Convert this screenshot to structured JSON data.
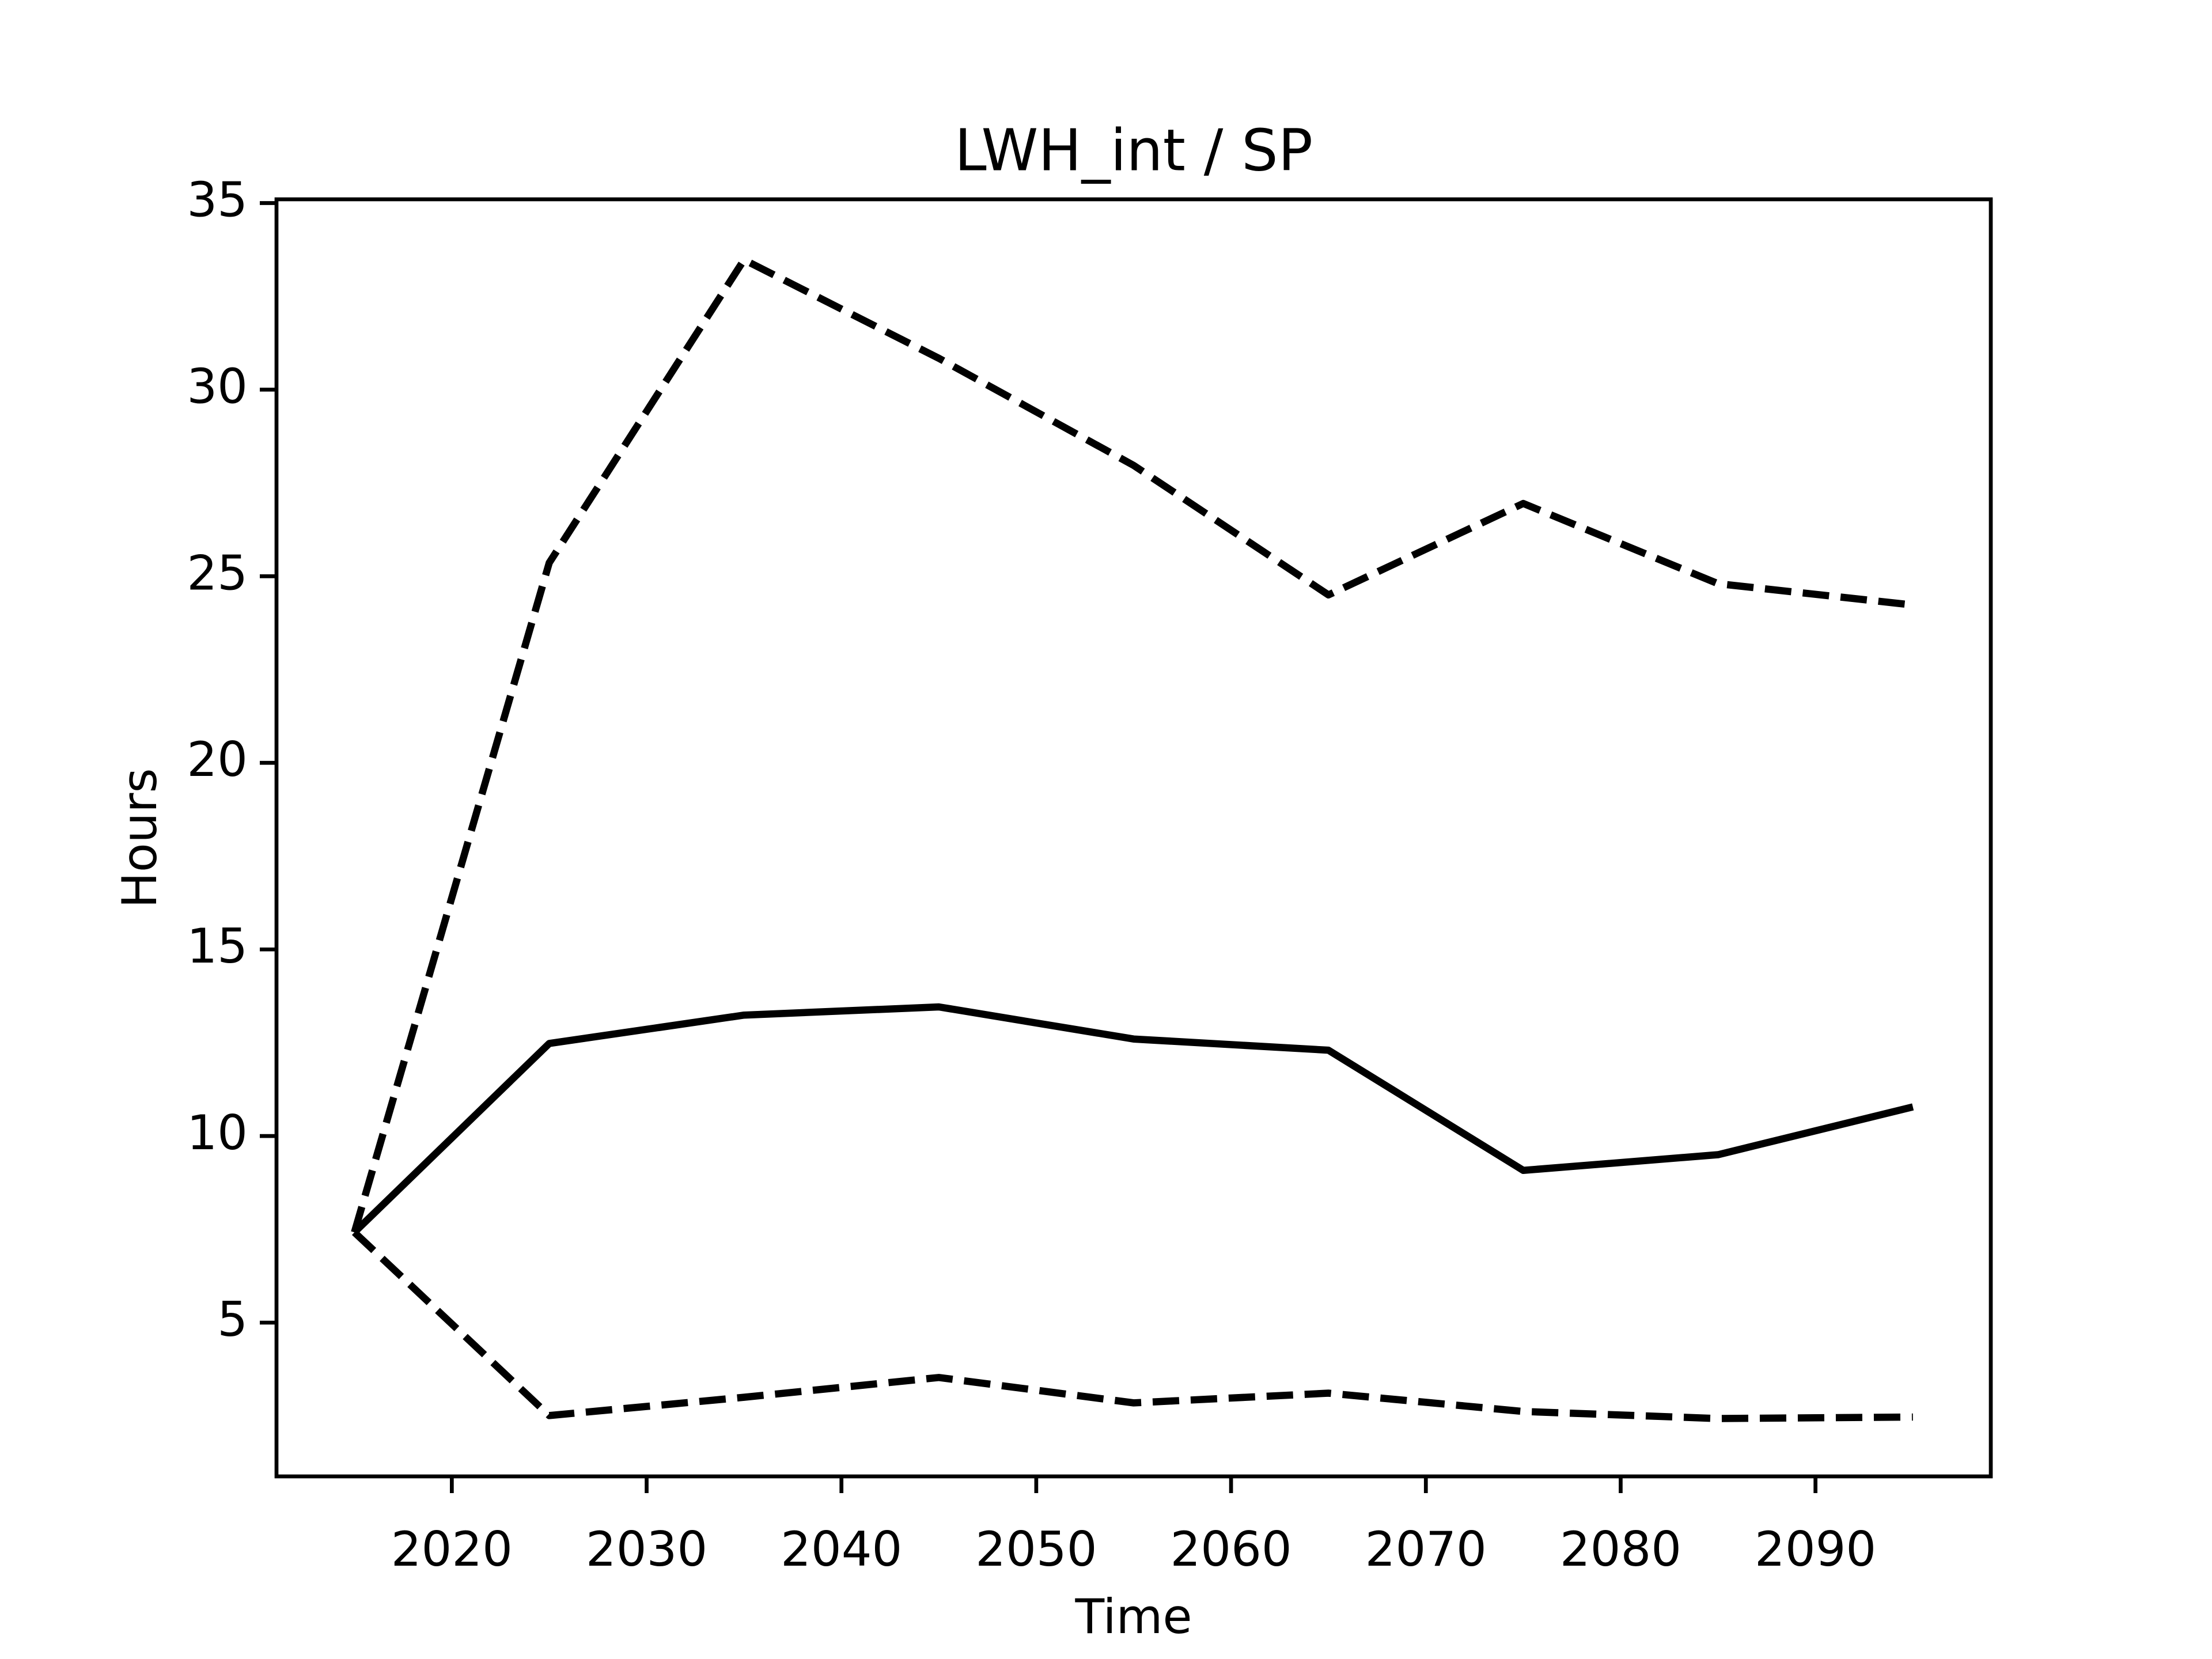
{
  "chart_data": {
    "type": "line",
    "title": "LWH_int / SP",
    "xlabel": "Time",
    "ylabel": "Hours",
    "x": [
      2015,
      2025,
      2035,
      2045,
      2055,
      2065,
      2075,
      2085,
      2095
    ],
    "series": [
      {
        "color": "#000000",
        "style": "solid",
        "values": [
          7.42,
          12.48,
          13.24,
          13.46,
          12.6,
          12.3,
          9.08,
          9.5,
          10.78
        ]
      },
      {
        "color": "#000000",
        "style": "dashed",
        "values": [
          7.42,
          25.36,
          33.48,
          30.84,
          27.97,
          24.5,
          26.95,
          24.8,
          24.23
        ]
      },
      {
        "color": "#000000",
        "style": "dashed",
        "values": [
          7.42,
          2.51,
          3.0,
          3.53,
          2.85,
          3.11,
          2.62,
          2.43,
          2.47
        ]
      }
    ],
    "xlim": [
      2011,
      2099
    ],
    "xticks": [
      2020,
      2030,
      2040,
      2050,
      2060,
      2070,
      2080,
      2090
    ],
    "ylim": [
      0.88,
      35.1
    ],
    "yticks": [
      5,
      10,
      15,
      20,
      25,
      30,
      35
    ],
    "grid": false
  }
}
